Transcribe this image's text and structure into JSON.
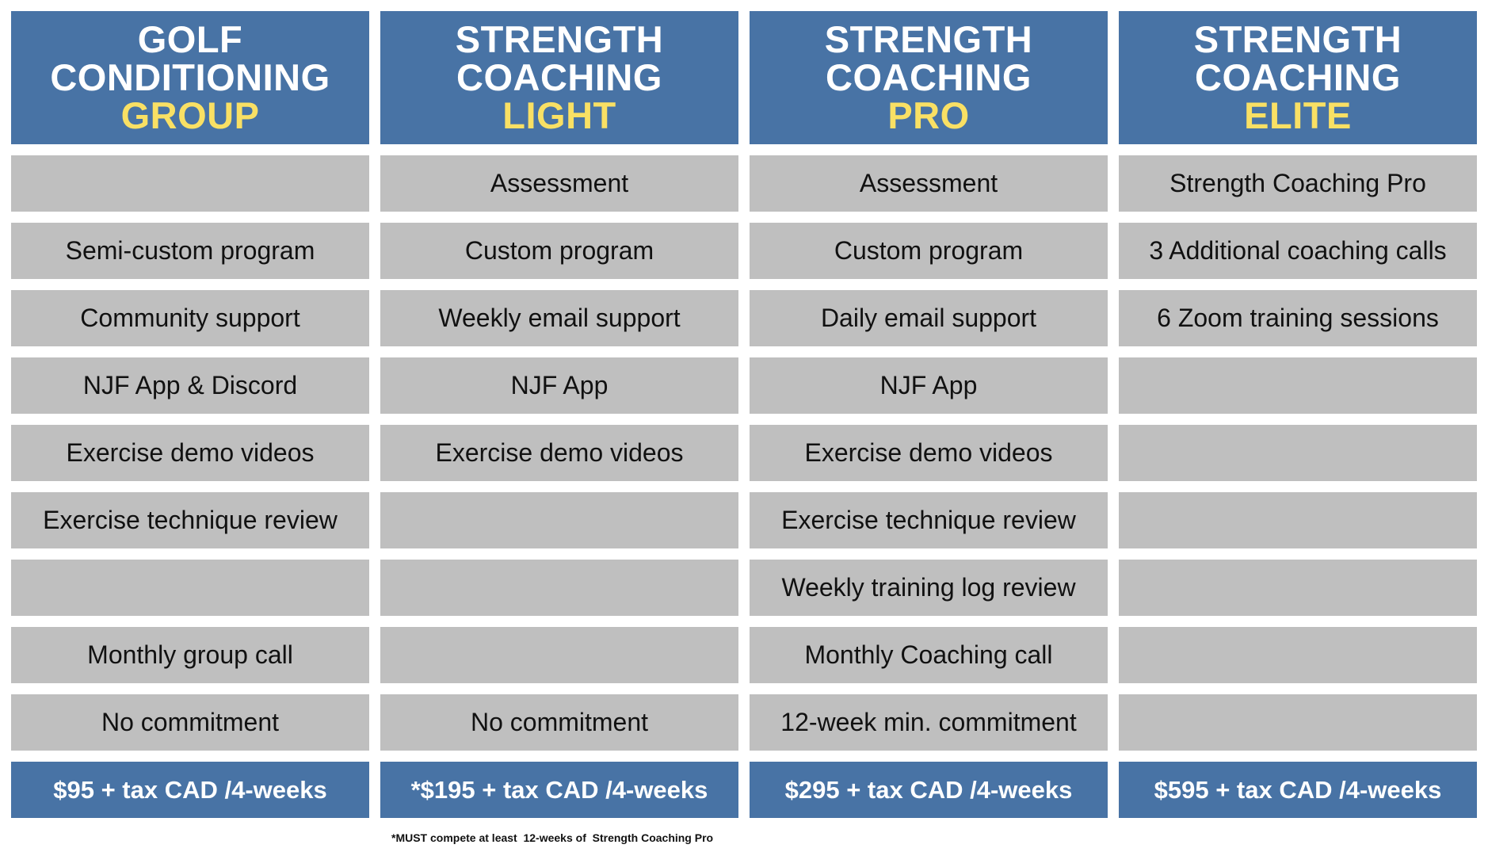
{
  "plans": [
    {
      "name_line1": "GOLF",
      "name_line2": "CONDITIONING",
      "tier": "GROUP",
      "features": [
        "",
        "Semi-custom program",
        "Community support",
        "NJF App & Discord",
        "Exercise demo videos",
        "Exercise technique review",
        "",
        "Monthly group call",
        "No commitment"
      ],
      "price": "$95 + tax CAD /4-weeks"
    },
    {
      "name_line1": "STRENGTH",
      "name_line2": "COACHING",
      "tier": "LIGHT",
      "features": [
        "Assessment",
        "Custom program",
        "Weekly email support",
        "NJF App",
        "Exercise demo videos",
        "",
        "",
        "",
        "No commitment"
      ],
      "price": "*$195 + tax CAD /4-weeks"
    },
    {
      "name_line1": "STRENGTH",
      "name_line2": "COACHING",
      "tier": "PRO",
      "features": [
        "Assessment",
        "Custom program",
        "Daily email support",
        "NJF App",
        "Exercise demo videos",
        "Exercise technique review",
        "Weekly training log review",
        "Monthly Coaching call",
        "12-week min. commitment"
      ],
      "price": "$295 + tax CAD /4-weeks"
    },
    {
      "name_line1": "STRENGTH",
      "name_line2": "COACHING",
      "tier": "ELITE",
      "features": [
        "Strength Coaching Pro",
        "3 Additional coaching calls",
        "6 Zoom training sessions",
        "",
        "",
        "",
        "",
        "",
        ""
      ],
      "price": "$595 + tax CAD /4-weeks"
    }
  ],
  "footnote": "*MUST compete at least  12-weeks of  Strength Coaching Pro",
  "colors": {
    "header_bg": "#4873a5",
    "tier_text": "#f9e064",
    "cell_bg": "#bfbfbf"
  }
}
